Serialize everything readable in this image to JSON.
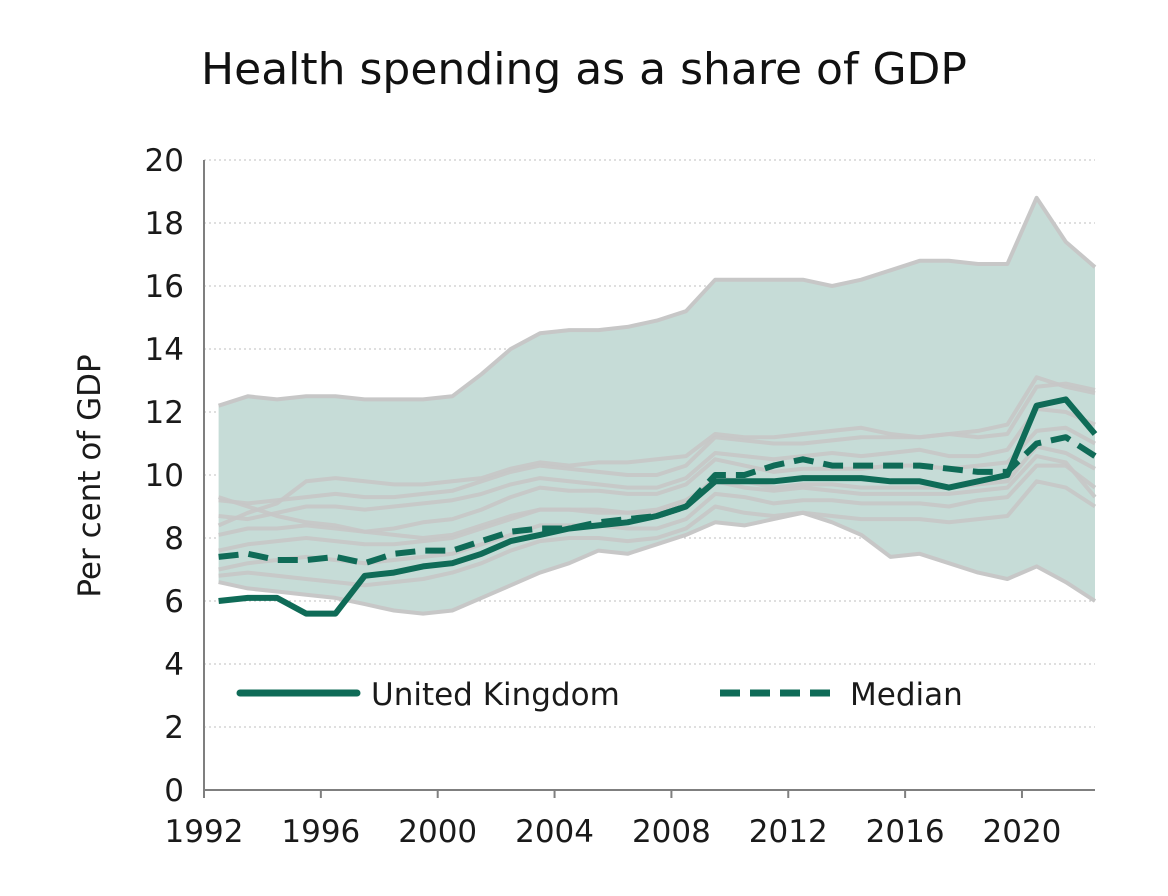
{
  "chart_data": {
    "type": "line",
    "title": "Health spending as a share of GDP",
    "xlabel": "",
    "ylabel": "Per cent of GDP",
    "xlim": [
      1992,
      2022.5
    ],
    "ylim": [
      0,
      20
    ],
    "x_ticks": [
      1992,
      1996,
      2000,
      2004,
      2008,
      2012,
      2016,
      2020
    ],
    "y_ticks": [
      0,
      2,
      4,
      6,
      8,
      10,
      12,
      14,
      16,
      18,
      20
    ],
    "grid": "horizontal dotted",
    "legend_position": "bottom-inside",
    "colors": {
      "uk": "#0f6b57",
      "median": "#0f6b57",
      "band": "#c6dcd7",
      "others": "#c7c7c7"
    },
    "range_band": {
      "x": [
        1992.5,
        1993.5,
        1994.5,
        1995.5,
        1996.5,
        1997.5,
        1998.5,
        1999.5,
        2000.5,
        2001.5,
        2002.5,
        2003.5,
        2004.5,
        2005.5,
        2006.5,
        2007.5,
        2008.5,
        2009.5,
        2010.5,
        2011.5,
        2012.5,
        2013.5,
        2014.5,
        2015.5,
        2016.5,
        2017.5,
        2018.5,
        2019.5,
        2020.5,
        2021.5,
        2022.5
      ],
      "upper": [
        12.2,
        12.5,
        12.4,
        12.5,
        12.5,
        12.4,
        12.4,
        12.4,
        12.5,
        13.2,
        14.0,
        14.5,
        14.6,
        14.6,
        14.7,
        14.9,
        15.2,
        16.2,
        16.2,
        16.2,
        16.2,
        16.0,
        16.2,
        16.5,
        16.8,
        16.8,
        16.7,
        16.7,
        18.8,
        17.4,
        16.6
      ],
      "lower": [
        6.6,
        6.4,
        6.3,
        6.2,
        6.1,
        5.9,
        5.7,
        5.6,
        5.7,
        6.1,
        6.5,
        6.9,
        7.2,
        7.6,
        7.5,
        7.8,
        8.1,
        8.5,
        8.4,
        8.6,
        8.8,
        8.5,
        8.1,
        7.4,
        7.5,
        7.2,
        6.9,
        6.7,
        7.1,
        6.6,
        6.0
      ]
    },
    "other_countries": [
      [
        9.2,
        9.1,
        9.2,
        9.3,
        9.4,
        9.3,
        9.3,
        9.4,
        9.5,
        9.8,
        10.1,
        10.3,
        10.2,
        10.1,
        10.0,
        10.0,
        10.3,
        11.2,
        11.1,
        11.0,
        11.0,
        11.1,
        11.2,
        11.2,
        11.2,
        11.3,
        11.4,
        11.6,
        13.1,
        12.8,
        12.6
      ],
      [
        8.4,
        8.8,
        9.1,
        9.8,
        9.9,
        9.8,
        9.7,
        9.7,
        9.8,
        9.9,
        10.2,
        10.4,
        10.3,
        10.4,
        10.4,
        10.5,
        10.6,
        11.3,
        11.2,
        11.2,
        11.3,
        11.4,
        11.5,
        11.3,
        11.2,
        11.3,
        11.2,
        11.3,
        12.8,
        12.9,
        12.7
      ],
      [
        8.7,
        8.6,
        8.8,
        9.0,
        9.0,
        8.9,
        9.0,
        9.1,
        9.2,
        9.4,
        9.7,
        9.9,
        9.8,
        9.7,
        9.6,
        9.6,
        9.9,
        10.7,
        10.6,
        10.5,
        10.6,
        10.7,
        10.6,
        10.7,
        10.8,
        10.6,
        10.6,
        10.8,
        12.1,
        12.0,
        11.6
      ],
      [
        8.1,
        8.3,
        8.3,
        8.4,
        8.3,
        8.2,
        8.3,
        8.5,
        8.6,
        8.9,
        9.3,
        9.6,
        9.5,
        9.5,
        9.4,
        9.4,
        9.7,
        10.5,
        10.3,
        10.1,
        10.2,
        10.2,
        10.2,
        10.3,
        10.3,
        10.2,
        10.3,
        10.4,
        11.4,
        11.5,
        11.0
      ],
      [
        7.6,
        7.8,
        7.9,
        8.0,
        7.9,
        7.8,
        7.8,
        7.9,
        8.0,
        8.3,
        8.6,
        8.9,
        8.9,
        8.9,
        8.8,
        8.8,
        9.1,
        9.9,
        9.8,
        9.6,
        9.7,
        9.7,
        9.6,
        9.6,
        9.6,
        9.6,
        9.7,
        9.8,
        10.9,
        10.7,
        10.2
      ],
      [
        7.0,
        7.2,
        7.3,
        7.4,
        7.3,
        7.2,
        7.3,
        7.4,
        7.5,
        7.8,
        8.1,
        8.4,
        8.4,
        8.4,
        8.3,
        8.3,
        8.6,
        9.4,
        9.3,
        9.1,
        9.2,
        9.2,
        9.1,
        9.1,
        9.1,
        9.0,
        9.2,
        9.3,
        10.3,
        10.3,
        9.6
      ],
      [
        6.8,
        6.9,
        6.8,
        6.7,
        6.6,
        6.5,
        6.6,
        6.7,
        6.9,
        7.2,
        7.6,
        7.9,
        8.0,
        8.0,
        7.9,
        8.0,
        8.3,
        9.0,
        8.8,
        8.7,
        8.8,
        8.7,
        8.6,
        8.6,
        8.6,
        8.5,
        8.6,
        8.7,
        9.8,
        9.6,
        9.0
      ],
      [
        9.3,
        9.0,
        8.7,
        8.5,
        8.4,
        8.2,
        8.1,
        8.0,
        8.1,
        8.4,
        8.7,
        8.9,
        8.9,
        8.8,
        8.8,
        8.9,
        9.2,
        9.8,
        9.6,
        9.5,
        9.6,
        9.5,
        9.4,
        9.4,
        9.4,
        9.4,
        9.5,
        9.6,
        10.6,
        10.4,
        9.3
      ]
    ],
    "series": [
      {
        "name": "United Kingdom",
        "style": "solid",
        "x": [
          1992.5,
          1993.5,
          1994.5,
          1995.5,
          1996.5,
          1997.5,
          1998.5,
          1999.5,
          2000.5,
          2001.5,
          2002.5,
          2003.5,
          2004.5,
          2005.5,
          2006.5,
          2007.5,
          2008.5,
          2009.5,
          2010.5,
          2011.5,
          2012.5,
          2013.5,
          2014.5,
          2015.5,
          2016.5,
          2017.5,
          2018.5,
          2019.5,
          2020.5,
          2021.5,
          2022.5
        ],
        "values": [
          6.0,
          6.1,
          6.1,
          5.6,
          5.6,
          6.8,
          6.9,
          7.1,
          7.2,
          7.5,
          7.9,
          8.1,
          8.3,
          8.4,
          8.5,
          8.7,
          9.0,
          9.8,
          9.8,
          9.8,
          9.9,
          9.9,
          9.9,
          9.8,
          9.8,
          9.6,
          9.8,
          10.0,
          12.2,
          12.4,
          11.3
        ]
      },
      {
        "name": "Median",
        "style": "dashed",
        "x": [
          1992.5,
          1993.5,
          1994.5,
          1995.5,
          1996.5,
          1997.5,
          1998.5,
          1999.5,
          2000.5,
          2001.5,
          2002.5,
          2003.5,
          2004.5,
          2005.5,
          2006.5,
          2007.5,
          2008.5,
          2009.5,
          2010.5,
          2011.5,
          2012.5,
          2013.5,
          2014.5,
          2015.5,
          2016.5,
          2017.5,
          2018.5,
          2019.5,
          2020.5,
          2021.5,
          2022.5
        ],
        "values": [
          7.4,
          7.5,
          7.3,
          7.3,
          7.4,
          7.2,
          7.5,
          7.6,
          7.6,
          7.9,
          8.2,
          8.3,
          8.3,
          8.5,
          8.6,
          8.7,
          9.0,
          10.0,
          10.0,
          10.3,
          10.5,
          10.3,
          10.3,
          10.3,
          10.3,
          10.2,
          10.1,
          10.1,
          11.0,
          11.2,
          10.6
        ]
      }
    ]
  }
}
